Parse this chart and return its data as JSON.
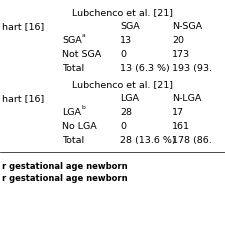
{
  "header1": "Lubchenco et al. [21]",
  "header2": "Lubchenco et al. [21]",
  "col_left_label": "hart [16]",
  "col3_label_top": "SGA",
  "col4_label_top": "N-SGA",
  "col3_label_bot": "LGA",
  "col4_label_bot": "N-LGA",
  "row1_label": "SGA",
  "row1_sup": "a",
  "row1_c3": "13",
  "row1_c4": "20",
  "row2_label": "Not SGA",
  "row2_c3": "0",
  "row2_c4": "173",
  "row3_label": "Total",
  "row3_c3": "13 (6.3 %)",
  "row3_c4": "193 (93.",
  "row4_label": "LGA",
  "row4_sup": "b",
  "row4_c3": "28",
  "row4_c4": "17",
  "row5_label": "No LGA",
  "row5_c3": "0",
  "row5_c4": "161",
  "row6_label": "Total",
  "row6_c3": "28 (13.6 %)",
  "row6_c4": "178 (86.",
  "footnote1": "r gestational age newborn",
  "footnote2": "r gestational age newborn",
  "bg_color": "#ffffff",
  "text_color": "#000000",
  "font_size": 6.8,
  "footnote_font_size": 6.0
}
